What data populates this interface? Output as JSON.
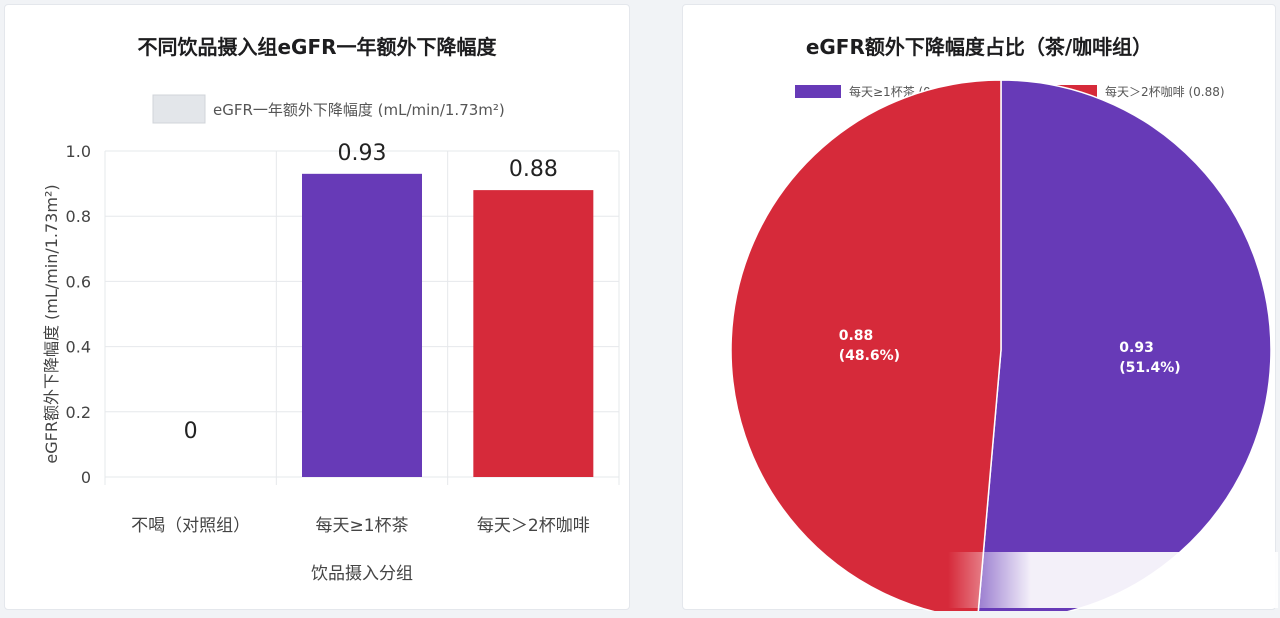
{
  "charts": {
    "left": {
      "title": "不同饮品摄入组eGFR一年额外下降幅度",
      "legend_label": "eGFR一年额外下降幅度 (mL/min/1.73m²)",
      "legend_color": "#e3e6ea"
    },
    "right": {
      "title": "eGFR额外下降幅度占比（茶/咖啡组）"
    }
  },
  "chart_data": [
    {
      "type": "bar",
      "title": "不同饮品摄入组eGFR一年额外下降幅度",
      "xlabel": "饮品摄入分组",
      "ylabel": "eGFR额外下降幅度 (mL/min/1.73m²)",
      "categories": [
        "不喝（对照组）",
        "每天≥1杯茶",
        "每天＞2杯咖啡"
      ],
      "values": [
        0,
        0.93,
        0.88
      ],
      "value_labels": [
        "0",
        "0.93",
        "0.88"
      ],
      "colors": [
        "#e3e6ea",
        "#673ab7",
        "#d62a3a"
      ],
      "series": [
        {
          "name": "eGFR一年额外下降幅度 (mL/min/1.73m²)",
          "values": [
            0,
            0.93,
            0.88
          ]
        }
      ],
      "yticks": [
        "0",
        "0.2",
        "0.4",
        "0.6",
        "0.8",
        "1.0"
      ],
      "ylim": [
        0,
        1.0
      ],
      "grid": true,
      "legend": "top"
    },
    {
      "type": "pie",
      "title": "eGFR额外下降幅度占比（茶/咖啡组）",
      "slices": [
        {
          "name": "每天≥1杯茶 (0.93)",
          "value": 0.93,
          "percent_label": "(51.4%)",
          "value_label": "0.93",
          "color": "#673ab7"
        },
        {
          "name": "每天＞2杯咖啡 (0.88)",
          "value": 0.88,
          "percent_label": "(48.6%)",
          "value_label": "0.88",
          "color": "#d62a3a"
        }
      ],
      "legend": "top"
    }
  ]
}
